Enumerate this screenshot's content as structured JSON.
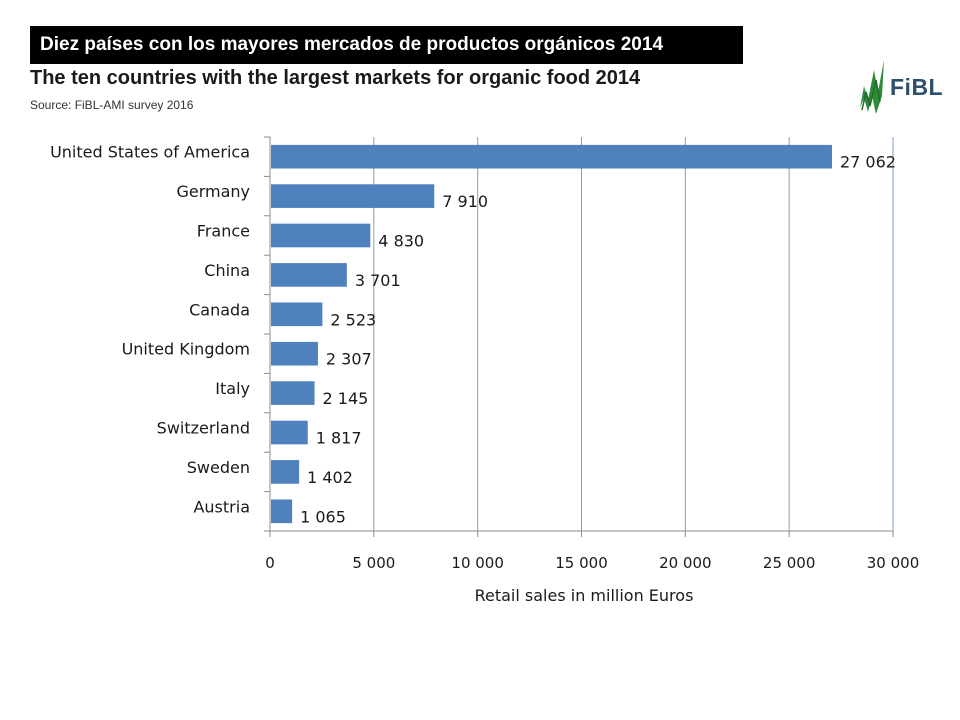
{
  "banner": {
    "text": "Diez países con los mayores mercados de productos orgánicos 2014"
  },
  "header": {
    "title": "The ten countries with the largest markets for organic food  2014",
    "source": "Source: FiBL-AMI survey 2016"
  },
  "logo": {
    "text": "FiBL",
    "icon": "fibl-leaf-icon",
    "color": "#2f4f6f",
    "accent": "#2e8b3a"
  },
  "colors": {
    "bar": "#4f81bd",
    "grid": "#7f9fbf",
    "axis": "#8c8c8c"
  },
  "chart_data": {
    "type": "bar",
    "orientation": "horizontal",
    "categories": [
      "United States of America",
      "Germany",
      "France",
      "China",
      "Canada",
      "United Kingdom",
      "Italy",
      "Switzerland",
      "Sweden",
      "Austria"
    ],
    "values": [
      27062,
      7910,
      4830,
      3701,
      2523,
      2307,
      2145,
      1817,
      1402,
      1065
    ],
    "value_labels": [
      "27 062",
      "7 910",
      "4 830",
      "3 701",
      "2 523",
      "2 307",
      "2 145",
      "1 817",
      "1 402",
      "1 065"
    ],
    "xlabel": "Retail sales in million Euros",
    "ylabel": "",
    "xlim": [
      0,
      30000
    ],
    "ticks": [
      0,
      5000,
      10000,
      15000,
      20000,
      25000,
      30000
    ],
    "tick_labels": [
      "0",
      "5 000",
      "10 000",
      "15 000",
      "20 000",
      "25 000",
      "30 000"
    ],
    "grid": "vertical",
    "legend": "none"
  }
}
